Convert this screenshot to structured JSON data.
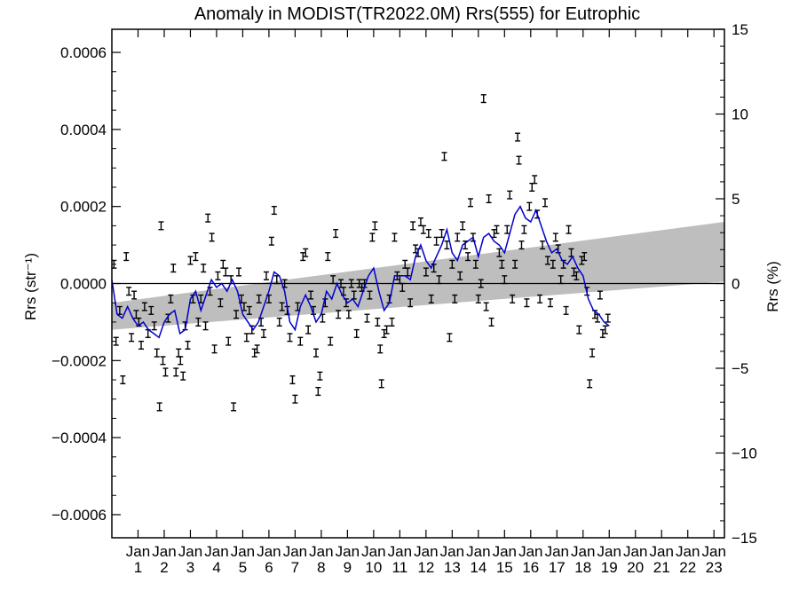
{
  "chart_data": {
    "type": "scatter",
    "title": "Anomaly in MODIST(TR2022.0M) Rrs(555) for Eutrophic",
    "ylabel_left": "Rrs (str⁻¹)",
    "ylabel_right": "Rrs (%)",
    "ylim_left": [
      -0.00066,
      0.00066
    ],
    "ylim_right": [
      -15,
      15
    ],
    "xlim": [
      2000.0,
      2023.4
    ],
    "x_tick_month": "Jan",
    "x_ticks": [
      {
        "year": 2001,
        "label": "1"
      },
      {
        "year": 2002,
        "label": "2"
      },
      {
        "year": 2003,
        "label": "3"
      },
      {
        "year": 2004,
        "label": "4"
      },
      {
        "year": 2005,
        "label": "5"
      },
      {
        "year": 2006,
        "label": "6"
      },
      {
        "year": 2007,
        "label": "7"
      },
      {
        "year": 2008,
        "label": "8"
      },
      {
        "year": 2009,
        "label": "9"
      },
      {
        "year": 2010,
        "label": "10"
      },
      {
        "year": 2011,
        "label": "11"
      },
      {
        "year": 2012,
        "label": "12"
      },
      {
        "year": 2013,
        "label": "13"
      },
      {
        "year": 2014,
        "label": "14"
      },
      {
        "year": 2015,
        "label": "15"
      },
      {
        "year": 2016,
        "label": "16"
      },
      {
        "year": 2017,
        "label": "17"
      },
      {
        "year": 2018,
        "label": "18"
      },
      {
        "year": 2019,
        "label": "19"
      },
      {
        "year": 2020,
        "label": "20"
      },
      {
        "year": 2021,
        "label": "21"
      },
      {
        "year": 2022,
        "label": "22"
      },
      {
        "year": 2023,
        "label": "23"
      }
    ],
    "y_ticks_left": [
      {
        "value": 0.0006,
        "label": "0.0006"
      },
      {
        "value": 0.0004,
        "label": "0.0004"
      },
      {
        "value": 0.0002,
        "label": "0.0002"
      },
      {
        "value": 0.0,
        "label": "0.0000"
      },
      {
        "value": -0.0002,
        "label": "−0.0002"
      },
      {
        "value": -0.0004,
        "label": "−0.0004"
      },
      {
        "value": -0.0006,
        "label": "−0.0006"
      }
    ],
    "y_ticks_right": [
      {
        "value": 15,
        "label": "15"
      },
      {
        "value": 10,
        "label": "10"
      },
      {
        "value": 5,
        "label": "5"
      },
      {
        "value": 0,
        "label": "0"
      },
      {
        "value": -5,
        "label": "−5"
      },
      {
        "value": -10,
        "label": "−10"
      },
      {
        "value": -15,
        "label": "−15"
      }
    ],
    "trend_band": {
      "x": [
        2000.0,
        2023.4
      ],
      "upper": [
        -5e-05,
        0.00016
      ],
      "lower": [
        -0.00012,
        5e-06
      ],
      "color": "#bebebe"
    },
    "zero_line": 0.0,
    "colors": {
      "points": "#000000",
      "running_mean": "#0000cc",
      "band": "#bebebe"
    },
    "error_half_width": 1e-05,
    "points": [
      [
        2000.08,
        5e-05
      ],
      [
        2000.16,
        -0.00015
      ],
      [
        2000.3,
        -7e-05
      ],
      [
        2000.42,
        -0.00025
      ],
      [
        2000.55,
        7e-05
      ],
      [
        2000.65,
        -2e-05
      ],
      [
        2000.75,
        -0.00014
      ],
      [
        2000.85,
        -3e-05
      ],
      [
        2000.93,
        -8e-05
      ],
      [
        2001.03,
        -0.0001
      ],
      [
        2001.12,
        -0.00016
      ],
      [
        2001.25,
        -6e-05
      ],
      [
        2001.38,
        -0.00013
      ],
      [
        2001.5,
        -7e-05
      ],
      [
        2001.62,
        -0.00011
      ],
      [
        2001.72,
        -0.00018
      ],
      [
        2001.82,
        -0.00032
      ],
      [
        2001.88,
        0.00015
      ],
      [
        2001.95,
        -0.0002
      ],
      [
        2002.05,
        -0.00023
      ],
      [
        2002.15,
        -9e-05
      ],
      [
        2002.25,
        -4e-05
      ],
      [
        2002.35,
        4e-05
      ],
      [
        2002.45,
        -0.00023
      ],
      [
        2002.55,
        -0.00018
      ],
      [
        2002.62,
        -0.0002
      ],
      [
        2002.72,
        -0.00024
      ],
      [
        2002.8,
        -0.00011
      ],
      [
        2002.9,
        -0.00016
      ],
      [
        2003.0,
        6e-05
      ],
      [
        2003.1,
        -4e-05
      ],
      [
        2003.2,
        7e-05
      ],
      [
        2003.3,
        -0.0001
      ],
      [
        2003.4,
        -4e-05
      ],
      [
        2003.5,
        4e-05
      ],
      [
        2003.58,
        -0.00011
      ],
      [
        2003.67,
        0.00017
      ],
      [
        2003.75,
        -2e-05
      ],
      [
        2003.82,
        0.00012
      ],
      [
        2003.92,
        -0.00017
      ],
      [
        2004.05,
        2e-05
      ],
      [
        2004.15,
        -5e-05
      ],
      [
        2004.25,
        5e-05
      ],
      [
        2004.35,
        3e-05
      ],
      [
        2004.45,
        -0.00015
      ],
      [
        2004.55,
        1e-05
      ],
      [
        2004.65,
        -0.00032
      ],
      [
        2004.75,
        -8e-05
      ],
      [
        2004.85,
        3e-05
      ],
      [
        2004.95,
        -4e-05
      ],
      [
        2005.05,
        -6e-05
      ],
      [
        2005.15,
        -0.00014
      ],
      [
        2005.25,
        -7e-05
      ],
      [
        2005.35,
        -0.00012
      ],
      [
        2005.45,
        -0.00018
      ],
      [
        2005.55,
        -0.00017
      ],
      [
        2005.62,
        -4e-05
      ],
      [
        2005.7,
        -0.0001
      ],
      [
        2005.8,
        -0.00013
      ],
      [
        2005.9,
        2e-05
      ],
      [
        2006.0,
        -4e-05
      ],
      [
        2006.1,
        0.00011
      ],
      [
        2006.2,
        0.00019
      ],
      [
        2006.3,
        1e-05
      ],
      [
        2006.4,
        -0.0001
      ],
      [
        2006.5,
        -6e-05
      ],
      [
        2006.6,
        0.0
      ],
      [
        2006.7,
        -7e-05
      ],
      [
        2006.8,
        -0.00014
      ],
      [
        2006.9,
        -0.00025
      ],
      [
        2007.0,
        -0.0003
      ],
      [
        2007.1,
        -6e-05
      ],
      [
        2007.2,
        -0.00015
      ],
      [
        2007.3,
        7e-05
      ],
      [
        2007.4,
        8e-05
      ],
      [
        2007.5,
        -0.00012
      ],
      [
        2007.6,
        -3e-05
      ],
      [
        2007.7,
        -7e-05
      ],
      [
        2007.8,
        -0.00018
      ],
      [
        2007.88,
        -0.00028
      ],
      [
        2007.95,
        -0.00024
      ],
      [
        2008.05,
        -9e-05
      ],
      [
        2008.15,
        -5e-05
      ],
      [
        2008.25,
        7e-05
      ],
      [
        2008.35,
        -0.00015
      ],
      [
        2008.45,
        1e-05
      ],
      [
        2008.55,
        0.00013
      ],
      [
        2008.65,
        -8e-05
      ],
      [
        2008.75,
        0.0
      ],
      [
        2008.85,
        -2e-05
      ],
      [
        2008.95,
        -5e-05
      ],
      [
        2009.05,
        -8e-05
      ],
      [
        2009.15,
        0.0
      ],
      [
        2009.25,
        -3e-05
      ],
      [
        2009.35,
        -0.00013
      ],
      [
        2009.45,
        0.0
      ],
      [
        2009.55,
        -1e-05
      ],
      [
        2009.65,
        0.0
      ],
      [
        2009.75,
        -9e-05
      ],
      [
        2009.85,
        -3e-05
      ],
      [
        2009.95,
        0.00012
      ],
      [
        2010.05,
        0.00015
      ],
      [
        2010.15,
        -0.0001
      ],
      [
        2010.25,
        -0.00017
      ],
      [
        2010.3,
        -0.00026
      ],
      [
        2010.4,
        -0.00013
      ],
      [
        2010.5,
        -0.00012
      ],
      [
        2010.6,
        -4e-05
      ],
      [
        2010.7,
        -0.0001
      ],
      [
        2010.8,
        0.00012
      ],
      [
        2010.9,
        2e-05
      ],
      [
        2011.0,
        1e-05
      ],
      [
        2011.1,
        -1e-05
      ],
      [
        2011.2,
        5e-05
      ],
      [
        2011.3,
        3e-05
      ],
      [
        2011.4,
        -5e-05
      ],
      [
        2011.5,
        0.00015
      ],
      [
        2011.6,
        9e-05
      ],
      [
        2011.7,
        8e-05
      ],
      [
        2011.8,
        0.00016
      ],
      [
        2011.9,
        0.00014
      ],
      [
        2012.0,
        3e-05
      ],
      [
        2012.1,
        0.00013
      ],
      [
        2012.2,
        -4e-05
      ],
      [
        2012.3,
        4e-05
      ],
      [
        2012.4,
        0.00011
      ],
      [
        2012.5,
        1e-05
      ],
      [
        2012.6,
        0.00013
      ],
      [
        2012.7,
        0.00033
      ],
      [
        2012.8,
        0.0001
      ],
      [
        2012.9,
        -0.00014
      ],
      [
        2013.0,
        5e-05
      ],
      [
        2013.1,
        -4e-05
      ],
      [
        2013.2,
        0.00012
      ],
      [
        2013.3,
        2e-05
      ],
      [
        2013.4,
        0.00015
      ],
      [
        2013.5,
        0.0001
      ],
      [
        2013.6,
        7e-05
      ],
      [
        2013.7,
        0.00021
      ],
      [
        2013.8,
        0.00012
      ],
      [
        2013.9,
        5e-05
      ],
      [
        2014.0,
        -4e-05
      ],
      [
        2014.1,
        0.0
      ],
      [
        2014.2,
        0.00048
      ],
      [
        2014.3,
        -6e-05
      ],
      [
        2014.4,
        0.00022
      ],
      [
        2014.5,
        -0.0001
      ],
      [
        2014.6,
        0.00013
      ],
      [
        2014.7,
        0.00014
      ],
      [
        2014.8,
        8e-05
      ],
      [
        2014.9,
        5e-05
      ],
      [
        2015.0,
        1e-05
      ],
      [
        2015.1,
        0.00014
      ],
      [
        2015.2,
        0.00023
      ],
      [
        2015.3,
        -4e-05
      ],
      [
        2015.4,
        5e-05
      ],
      [
        2015.5,
        0.00038
      ],
      [
        2015.55,
        0.00032
      ],
      [
        2015.65,
        0.0001
      ],
      [
        2015.75,
        0.00014
      ],
      [
        2015.85,
        -5e-05
      ],
      [
        2015.95,
        0.0002
      ],
      [
        2016.05,
        0.00025
      ],
      [
        2016.15,
        0.00027
      ],
      [
        2016.25,
        0.00018
      ],
      [
        2016.35,
        -4e-05
      ],
      [
        2016.45,
        0.0001
      ],
      [
        2016.55,
        0.00021
      ],
      [
        2016.65,
        6e-05
      ],
      [
        2016.75,
        -5e-05
      ],
      [
        2016.85,
        5e-05
      ],
      [
        2016.95,
        0.00012
      ],
      [
        2017.05,
        9e-05
      ],
      [
        2017.15,
        1e-05
      ],
      [
        2017.25,
        5e-05
      ],
      [
        2017.35,
        -7e-05
      ],
      [
        2017.45,
        0.00014
      ],
      [
        2017.55,
        8e-05
      ],
      [
        2017.65,
        3e-05
      ],
      [
        2017.75,
        2e-05
      ],
      [
        2017.85,
        -0.00012
      ],
      [
        2017.95,
        6e-05
      ],
      [
        2018.05,
        7e-05
      ],
      [
        2018.15,
        -2e-05
      ],
      [
        2018.25,
        -0.00026
      ],
      [
        2018.35,
        -0.00018
      ],
      [
        2018.45,
        -8e-05
      ],
      [
        2018.55,
        -9e-05
      ],
      [
        2018.65,
        -3e-05
      ],
      [
        2018.75,
        -0.00013
      ],
      [
        2018.85,
        -0.00012
      ],
      [
        2018.95,
        -9e-05
      ]
    ],
    "running_mean": [
      [
        2000.0,
        1e-05
      ],
      [
        2000.2,
        -8e-05
      ],
      [
        2000.4,
        -9e-05
      ],
      [
        2000.6,
        -6e-05
      ],
      [
        2000.8,
        -9e-05
      ],
      [
        2001.0,
        -0.00011
      ],
      [
        2001.2,
        -0.0001
      ],
      [
        2001.4,
        -0.00012
      ],
      [
        2001.6,
        -0.00013
      ],
      [
        2001.8,
        -0.00014
      ],
      [
        2002.0,
        -0.0001
      ],
      [
        2002.2,
        -8e-05
      ],
      [
        2002.4,
        -7e-05
      ],
      [
        2002.6,
        -0.00013
      ],
      [
        2002.8,
        -0.00012
      ],
      [
        2003.0,
        -4e-05
      ],
      [
        2003.2,
        -2e-05
      ],
      [
        2003.4,
        -7e-05
      ],
      [
        2003.6,
        -3e-05
      ],
      [
        2003.8,
        1e-05
      ],
      [
        2004.0,
        -1e-05
      ],
      [
        2004.2,
        0.0
      ],
      [
        2004.4,
        -2e-05
      ],
      [
        2004.6,
        1e-05
      ],
      [
        2004.8,
        -2e-05
      ],
      [
        2005.0,
        -8e-05
      ],
      [
        2005.2,
        -0.0001
      ],
      [
        2005.4,
        -0.00012
      ],
      [
        2005.6,
        -0.0001
      ],
      [
        2005.8,
        -6e-05
      ],
      [
        2006.0,
        -2e-05
      ],
      [
        2006.2,
        3e-05
      ],
      [
        2006.4,
        2e-05
      ],
      [
        2006.6,
        -2e-05
      ],
      [
        2006.8,
        -0.0001
      ],
      [
        2007.0,
        -0.00012
      ],
      [
        2007.2,
        -6e-05
      ],
      [
        2007.4,
        -3e-05
      ],
      [
        2007.6,
        -6e-05
      ],
      [
        2007.8,
        -0.0001
      ],
      [
        2008.0,
        -8e-05
      ],
      [
        2008.2,
        -2e-05
      ],
      [
        2008.4,
        -4e-05
      ],
      [
        2008.6,
        0.0
      ],
      [
        2008.8,
        -3e-05
      ],
      [
        2009.0,
        -5e-05
      ],
      [
        2009.2,
        -4e-05
      ],
      [
        2009.4,
        -6e-05
      ],
      [
        2009.6,
        -2e-05
      ],
      [
        2009.8,
        2e-05
      ],
      [
        2010.0,
        4e-05
      ],
      [
        2010.2,
        -2e-05
      ],
      [
        2010.4,
        -7e-05
      ],
      [
        2010.6,
        -5e-05
      ],
      [
        2010.8,
        2e-05
      ],
      [
        2011.0,
        2e-05
      ],
      [
        2011.2,
        2e-05
      ],
      [
        2011.4,
        1e-05
      ],
      [
        2011.6,
        7e-05
      ],
      [
        2011.8,
        0.0001
      ],
      [
        2012.0,
        6e-05
      ],
      [
        2012.2,
        4e-05
      ],
      [
        2012.4,
        7e-05
      ],
      [
        2012.6,
        0.0001
      ],
      [
        2012.8,
        0.00014
      ],
      [
        2013.0,
        8e-05
      ],
      [
        2013.2,
        6e-05
      ],
      [
        2013.4,
        0.0001
      ],
      [
        2013.6,
        0.00011
      ],
      [
        2013.8,
        0.00012
      ],
      [
        2014.0,
        7e-05
      ],
      [
        2014.2,
        0.00012
      ],
      [
        2014.4,
        0.00013
      ],
      [
        2014.6,
        0.00011
      ],
      [
        2014.8,
        0.0001
      ],
      [
        2015.0,
        8e-05
      ],
      [
        2015.2,
        0.00013
      ],
      [
        2015.4,
        0.00018
      ],
      [
        2015.6,
        0.0002
      ],
      [
        2015.8,
        0.00017
      ],
      [
        2016.0,
        0.00016
      ],
      [
        2016.2,
        0.00019
      ],
      [
        2016.4,
        0.00015
      ],
      [
        2016.6,
        0.00011
      ],
      [
        2016.8,
        8e-05
      ],
      [
        2017.0,
        9e-05
      ],
      [
        2017.2,
        6e-05
      ],
      [
        2017.4,
        5e-05
      ],
      [
        2017.6,
        7e-05
      ],
      [
        2017.8,
        4e-05
      ],
      [
        2018.0,
        2e-05
      ],
      [
        2018.2,
        -4e-05
      ],
      [
        2018.4,
        -7e-05
      ],
      [
        2018.6,
        -8e-05
      ],
      [
        2018.8,
        -0.0001
      ],
      [
        2019.0,
        -0.00011
      ]
    ]
  }
}
